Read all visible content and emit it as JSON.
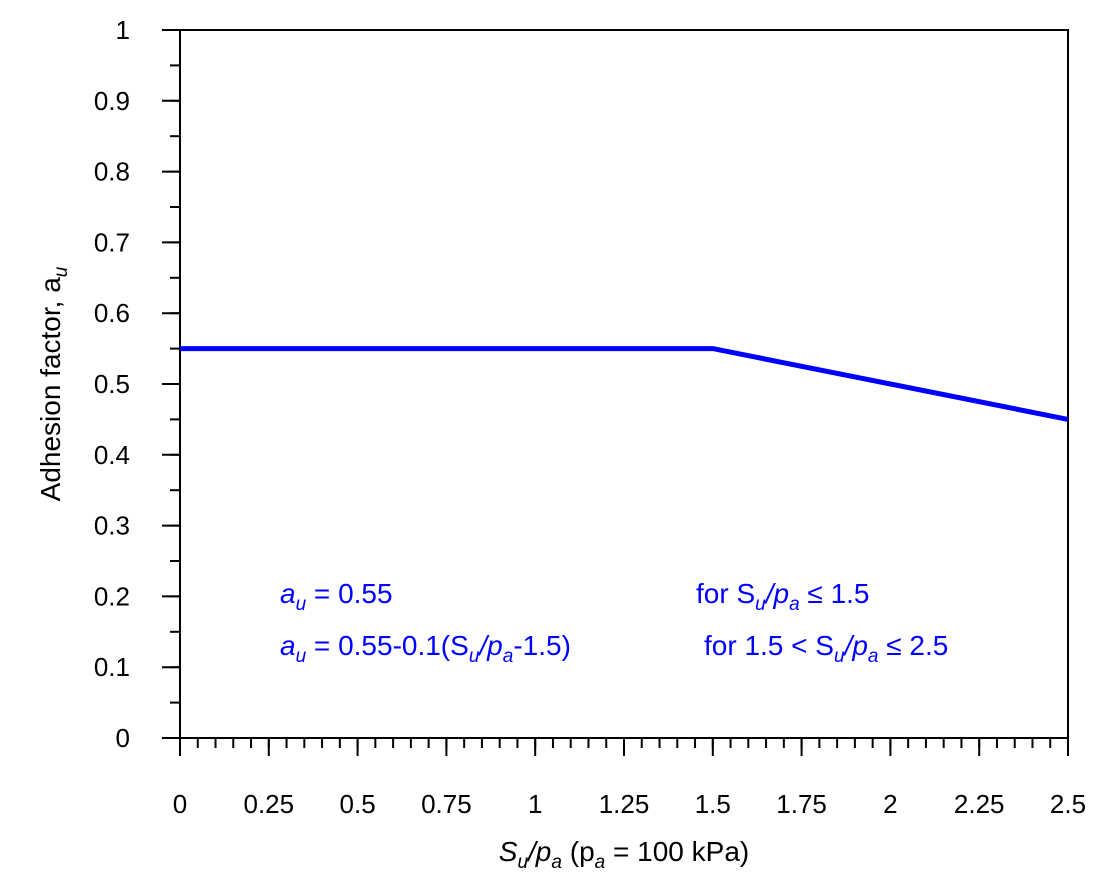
{
  "chart_data": {
    "type": "line",
    "xlabel": {
      "main": "S",
      "sub1": "u",
      "slash": "/p",
      "sub2": "a",
      "open": " (p",
      "sub3": "a",
      "rest": " = 100 kPa)"
    },
    "ylabel": {
      "main": "Adhesion factor, a",
      "sub": "u"
    },
    "xlim": [
      0,
      2.5
    ],
    "ylim": [
      0,
      1
    ],
    "x_ticks": [
      "0",
      "0.25",
      "0.5",
      "0.75",
      "1",
      "1.25",
      "1.5",
      "1.75",
      "2",
      "2.25",
      "2.5"
    ],
    "y_ticks": [
      "0",
      "0.1",
      "0.2",
      "0.3",
      "0.4",
      "0.5",
      "0.6",
      "0.7",
      "0.8",
      "0.9",
      "1"
    ],
    "x_tick_values": [
      0,
      0.25,
      0.5,
      0.75,
      1,
      1.25,
      1.5,
      1.75,
      2,
      2.25,
      2.5
    ],
    "y_tick_values": [
      0,
      0.1,
      0.2,
      0.3,
      0.4,
      0.5,
      0.6,
      0.7,
      0.8,
      0.9,
      1
    ],
    "x_minor_step": 0.05,
    "y_minor_step": 0.05,
    "grid": false,
    "series": [
      {
        "x": [
          0,
          1.5,
          2.5
        ],
        "y": [
          0.55,
          0.55,
          0.45
        ],
        "color": "#0000ff"
      }
    ],
    "annotations": {
      "line1": {
        "lhs": "a",
        "lhs_sub": "u",
        "eq": " = 0.55",
        "cond_pre": "for S",
        "cond_sub1": "u",
        "cond_mid": "/p",
        "cond_sub2": "a",
        "cond_post": " ≤ 1.5"
      },
      "line2": {
        "lhs": "a",
        "lhs_sub": "u",
        "eq_a": " = 0.55-0.1(S",
        "eq_sub1": "u",
        "eq_b": "/p",
        "eq_sub2": "a",
        "eq_c": "-1.5)",
        "cond_pre": "for 1.5 < S",
        "cond_sub1": "u",
        "cond_mid": "/p",
        "cond_sub2": "a",
        "cond_post": " ≤ 2.5"
      }
    },
    "annotation_color": "#0000ff"
  }
}
